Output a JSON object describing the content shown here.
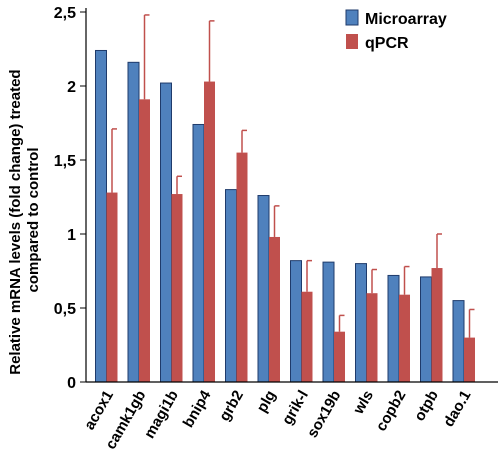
{
  "chart_data": {
    "type": "bar",
    "title": "",
    "xlabel": "",
    "ylabel": "Relative mRNA levels (fold change) treated compared to control",
    "ylabel_lines": [
      "Relative mRNA levels (fold change) treated",
      "compared to control"
    ],
    "ylim": [
      0,
      2.5
    ],
    "yticks": [
      0,
      0.5,
      1,
      1.5,
      2,
      2.5
    ],
    "ytick_labels": [
      "0",
      "0,5",
      "1",
      "1,5",
      "2",
      "2,5"
    ],
    "grid": false,
    "legend": "top-right",
    "categories": [
      "acox1",
      "camk1gb",
      "magi1b",
      "bnip4",
      "grb2",
      "plg",
      "grik-l",
      "sox19b",
      "wls",
      "copb2",
      "otpb",
      "dao.1"
    ],
    "series": [
      {
        "name": "Microarray",
        "color": "#4f81bd",
        "values": [
          2.24,
          2.16,
          2.02,
          1.74,
          1.3,
          1.26,
          0.82,
          0.81,
          0.8,
          0.72,
          0.71,
          0.55
        ],
        "error": null
      },
      {
        "name": "qPCR",
        "color": "#c0504d",
        "values": [
          1.28,
          1.91,
          1.27,
          2.03,
          1.55,
          0.98,
          0.61,
          0.34,
          0.6,
          0.59,
          0.77,
          0.3
        ],
        "error": [
          0.43,
          0.57,
          0.12,
          0.41,
          0.15,
          0.21,
          0.21,
          0.11,
          0.16,
          0.19,
          0.23,
          0.19
        ]
      }
    ]
  }
}
